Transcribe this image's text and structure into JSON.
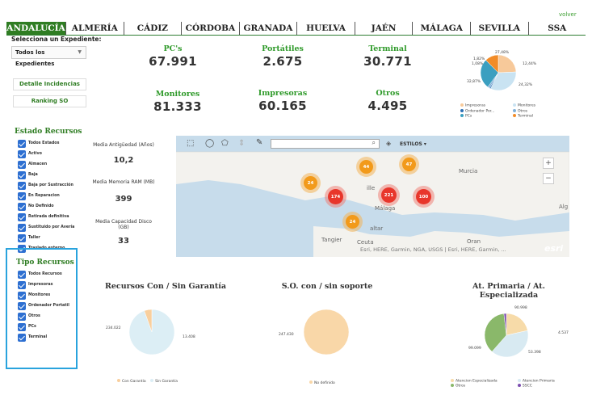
{
  "header": {
    "volver": "volver"
  },
  "tabs": [
    "ANDALUCÍA",
    "ALMERÍA",
    "CÁDIZ",
    "CÓRDOBA",
    "GRANADA",
    "HUELVA",
    "JAÉN",
    "MÁLAGA",
    "SEVILLA",
    "SSA"
  ],
  "sidebar": {
    "exp_label": "Selecciona un Expediente:",
    "exp_value": "Todos los Expedientes",
    "btn_detalle": "Detalle Incidencias",
    "btn_ranking": "Ranking SO",
    "estado_title": "Estado Recursos",
    "estado_items": [
      "Todos Estados",
      "Activo",
      "Almacen",
      "Baja",
      "Baja por Sustracción",
      "En Reparacion",
      "No Definido",
      "Retirada definitiva",
      "Sustituido por Avería",
      "Taller",
      "Traslado externo"
    ],
    "tipo_title": "Tipo Recursos",
    "tipo_items": [
      "Todos Recursos",
      "Impresoras",
      "Monitores",
      "Ordenador Portatil",
      "Otros",
      "PCs",
      "Terminal"
    ]
  },
  "kpis": {
    "pcs": {
      "label": "PC's",
      "value": "67.991"
    },
    "portatiles": {
      "label": "Portátiles",
      "value": "2.675"
    },
    "terminal": {
      "label": "Terminal",
      "value": "30.771"
    },
    "monitores": {
      "label": "Monitores",
      "value": "81.333"
    },
    "impresoras": {
      "label": "Impresoras",
      "value": "60.165"
    },
    "otros": {
      "label": "Otros",
      "value": "4.495"
    }
  },
  "stats": {
    "antiguedad": {
      "label": "Media Antigüedad (Años)",
      "value": "10,2"
    },
    "memoria": {
      "label": "Media Memoria RAM (MB)",
      "value": "399"
    },
    "disco": {
      "label": "Media Capacidad Disco (GB)",
      "value": "33"
    }
  },
  "map": {
    "estilos": "ESTILOS",
    "attribution": "Esri, HERE, Garmin, NGA, USGS | Esri, HERE, Garmin, ...",
    "esri": "esri",
    "places": [
      "Murcia",
      "Málaga",
      "Tangier",
      "Ceuta",
      "Oran",
      "Alg",
      "ille",
      "altar"
    ],
    "clusters": [
      {
        "label": "44",
        "kind": "orange"
      },
      {
        "label": "47",
        "kind": "orange"
      },
      {
        "label": "24",
        "kind": "orange"
      },
      {
        "label": "174",
        "kind": "red"
      },
      {
        "label": "221",
        "kind": "red"
      },
      {
        "label": "100",
        "kind": "red"
      },
      {
        "label": "24",
        "kind": "orange"
      }
    ]
  },
  "charts": {
    "top_pie_labels": [
      "27,48%",
      "1,82%",
      "1,08%",
      "12,44%",
      "32,87%",
      "24,32%"
    ],
    "top_pie_legend": [
      "Impresoras",
      "Monitores",
      "Ordenador Por...",
      "Otros",
      "PCs",
      "Terminal"
    ],
    "garantia_title": "Recursos Con / Sin Garantía",
    "garantia_labels": [
      "234.022",
      "13.408"
    ],
    "garantia_legend": [
      "Con Garantía",
      "Sin Garantía"
    ],
    "soporte_title": "S.O. con / sin soporte",
    "soporte_labels": [
      "247.430"
    ],
    "soporte_legend": [
      "No definido"
    ],
    "atencion_title": "At. Primaria / At. Especializada",
    "atencion_labels": [
      "90.998",
      "4.537",
      "99.099",
      "53.398"
    ],
    "atencion_legend": [
      "Atencion Especializada",
      "Atencion Primaria",
      "Otros",
      "SSCC"
    ]
  },
  "chart_data": [
    {
      "type": "pie",
      "categories": [
        "Impresoras",
        "Monitores",
        "Ordenador Portatil",
        "Otros",
        "PCs",
        "Terminal"
      ],
      "values": [
        24.32,
        32.87,
        1.08,
        1.82,
        27.48,
        12.44
      ],
      "colors": [
        "#f7c99a",
        "#c9e3f2",
        "#2d6fb5",
        "#7fb0d9",
        "#3b9fc0",
        "#f28c28"
      ]
    },
    {
      "type": "pie",
      "title": "Recursos Con / Sin Garantía",
      "categories": [
        "Con Garantía",
        "Sin Garantía"
      ],
      "values": [
        234022,
        13408
      ],
      "colors": [
        "#dceef5",
        "#f9cf9d"
      ]
    },
    {
      "type": "pie",
      "title": "S.O. con / sin soporte",
      "categories": [
        "No definido"
      ],
      "values": [
        247430
      ],
      "colors": [
        "#f9d7a8"
      ]
    },
    {
      "type": "pie",
      "title": "At. Primaria / At. Especializada",
      "categories": [
        "Atencion Especializada",
        "Atencion Primaria",
        "Otros",
        "SSCC"
      ],
      "values": [
        53398,
        99099,
        90998,
        4537
      ],
      "colors": [
        "#f7dba9",
        "#d8eaf2",
        "#8ab86a",
        "#7c4fb0"
      ]
    }
  ]
}
